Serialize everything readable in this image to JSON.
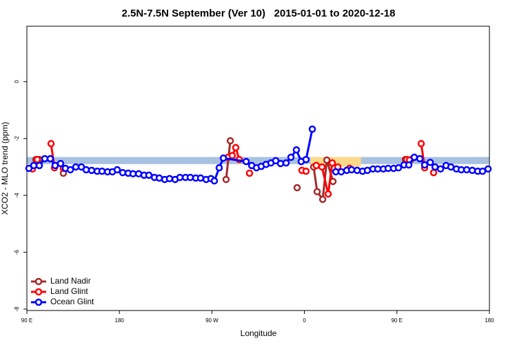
{
  "chart_data": {
    "type": "line",
    "title": "2.5N-7.5N September (Ver 10)   2015-01-01 to 2020-12-18",
    "x_label": "Longitude",
    "y_label": "XCO2 - MLO trend (ppm)",
    "xlim": [
      90,
      540
    ],
    "ylim": [
      -8.05,
      1.95
    ],
    "xticks": [
      {
        "value": 90,
        "label": "90 E"
      },
      {
        "value": 180,
        "label": "180"
      },
      {
        "value": 270,
        "label": "90 W"
      },
      {
        "value": 360,
        "label": "0"
      },
      {
        "value": 450,
        "label": "90 E"
      },
      {
        "value": 540,
        "label": "180"
      }
    ],
    "yticks": [
      0,
      -2,
      -4,
      -6,
      -8
    ],
    "legend": "bottom-left",
    "bands": [
      {
        "ylim": [
          -2.9,
          -2.65
        ],
        "color": "#a9c1e0"
      },
      {
        "xlim": [
          366,
          415
        ],
        "ylim": [
          -3.0,
          -2.65
        ],
        "color": "#fdd98a"
      }
    ],
    "series": [
      {
        "name": "Land Nadir",
        "color": "#a52a2a",
        "x": [
          98.7,
          102.1,
          null,
          125.5,
          null,
          283.8,
          287.9,
          null,
          352.9,
          null,
          369.0,
          372.4,
          377.8,
          381.8,
          387.8,
          null,
          458.2,
          463.6,
          null,
          485.7
        ],
        "values": [
          -2.74,
          -2.74,
          null,
          -3.22,
          null,
          -3.44,
          -2.08,
          null,
          -3.73,
          null,
          -3.0,
          -3.87,
          -4.14,
          -2.76,
          -3.51,
          null,
          -2.74,
          -2.74,
          null,
          -3.2
        ]
      },
      {
        "name": "Land Glint",
        "color": "#ff0000",
        "x": [
          95.4,
          100.1,
          null,
          113.5,
          116.8,
          null,
          125.5,
          null,
          285.8,
          289.8,
          293.2,
          296.6,
          null,
          306.6,
          null,
          357.6,
          361.6,
          null,
          371.6,
          377.1,
          383.1,
          387.1,
          392.5,
          null,
          403.9,
          null,
          459.6,
          462.3,
          null,
          473.6,
          477.0,
          null,
          485.7
        ],
        "values": [
          -3.07,
          -2.74,
          null,
          -2.18,
          -3.03,
          null,
          -3.05,
          null,
          -2.66,
          -2.6,
          -2.32,
          -2.74,
          null,
          -3.22,
          null,
          -3.12,
          -3.15,
          null,
          -2.95,
          -3.0,
          -3.95,
          -2.86,
          -3.0,
          null,
          -3.05,
          null,
          -2.74,
          -2.76,
          null,
          -2.18,
          -3.03,
          null,
          -3.2
        ]
      },
      {
        "name": "Ocean Glint",
        "color": "#0000ff",
        "x": [
          92.0,
          96.7,
          102.1,
          107.4,
          112.8,
          117.5,
          122.8,
          127.5,
          132.3,
          137.6,
          143.0,
          147.7,
          153.0,
          158.4,
          163.1,
          168.5,
          173.2,
          177.9,
          183.2,
          188.6,
          193.3,
          198.7,
          204.0,
          208.7,
          214.1,
          218.8,
          224.1,
          228.8,
          234.2,
          238.9,
          244.3,
          249.0,
          254.3,
          259.0,
          264.4,
          269.1,
          272.4,
          277.1,
          281.2,
          303.3,
          308.7,
          313.4,
          318.0,
          322.7,
          327.4,
          332.1,
          336.8,
          342.2,
          346.9,
          352.2,
          356.9,
          361.6,
          367.7,
          null,
          390.5,
          395.8,
          401.2,
          405.9,
          411.3,
          416.6,
          421.3,
          426.7,
          431.4,
          436.8,
          441.5,
          446.8,
          451.5,
          456.9,
          461.6,
          466.9,
          472.3,
          477.0,
          482.4,
          487.1,
          492.4,
          497.8,
          502.5,
          507.9,
          512.6,
          517.9,
          523.3,
          528.6,
          533.3,
          538.7
        ],
        "values": [
          -3.05,
          -2.95,
          -2.95,
          -2.71,
          -2.71,
          -2.95,
          -2.88,
          -3.05,
          -3.1,
          -3.0,
          -3.0,
          -3.1,
          -3.12,
          -3.15,
          -3.15,
          -3.17,
          -3.17,
          -3.1,
          -3.2,
          -3.22,
          -3.24,
          -3.24,
          -3.29,
          -3.29,
          -3.37,
          -3.39,
          -3.44,
          -3.41,
          -3.44,
          -3.37,
          -3.37,
          -3.37,
          -3.39,
          -3.39,
          -3.44,
          -3.41,
          -3.49,
          -3.03,
          -2.69,
          -2.81,
          -2.95,
          -3.03,
          -2.98,
          -2.91,
          -2.86,
          -2.78,
          -2.88,
          -2.86,
          -2.66,
          -2.4,
          -2.81,
          -2.74,
          -1.67,
          null,
          -3.17,
          -3.17,
          -3.12,
          -3.1,
          -3.12,
          -3.15,
          -3.12,
          -3.07,
          -3.07,
          -3.07,
          -3.05,
          -3.05,
          -3.03,
          -2.93,
          -2.93,
          -2.66,
          -2.71,
          -2.93,
          -2.84,
          -3.0,
          -3.07,
          -2.95,
          -3.0,
          -3.07,
          -3.1,
          -3.1,
          -3.12,
          -3.15,
          -3.15,
          -3.07
        ]
      }
    ]
  }
}
